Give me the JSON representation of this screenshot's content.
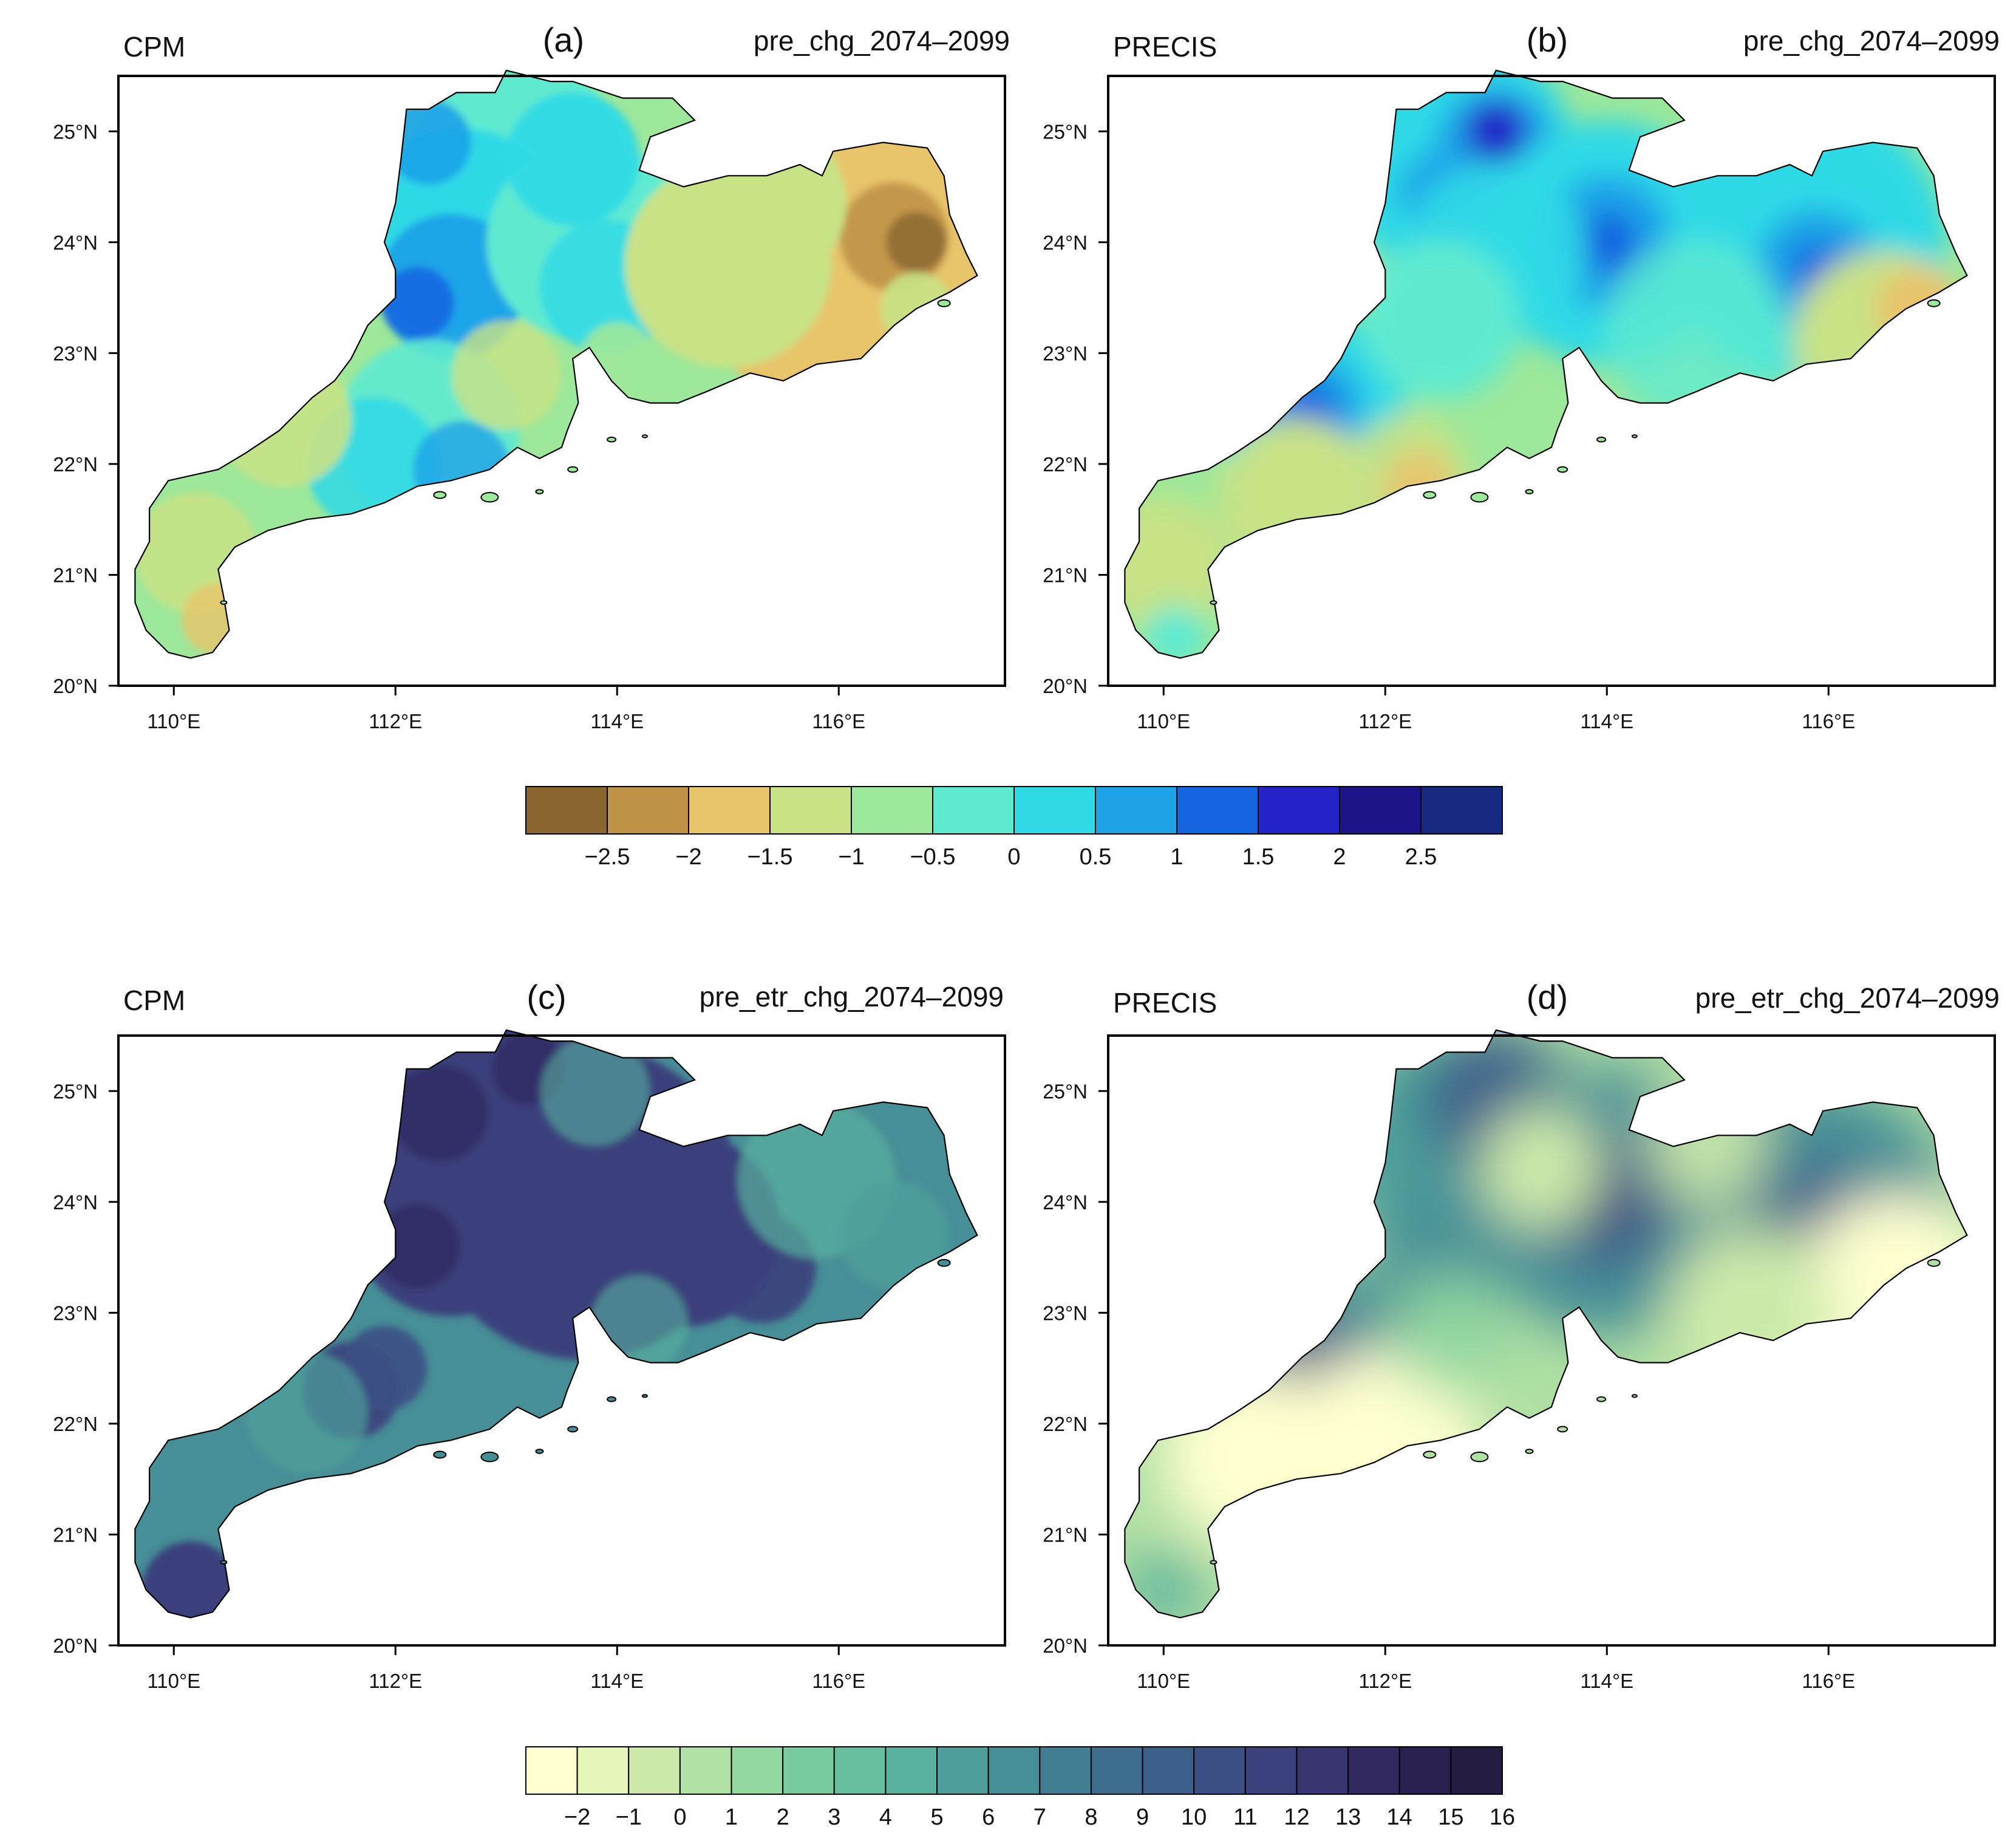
{
  "panels": [
    {
      "id": "a",
      "letter": "(a)",
      "model": "CPM",
      "variable": "pre_chg_2074–2099",
      "scale": "pre_chg"
    },
    {
      "id": "b",
      "letter": "(b)",
      "model": "PRECIS",
      "variable": "pre_chg_2074–2099",
      "scale": "pre_chg"
    },
    {
      "id": "c",
      "letter": "(c)",
      "model": "CPM",
      "variable": "pre_etr_chg_2074–2099",
      "scale": "pre_etr_chg"
    },
    {
      "id": "d",
      "letter": "(d)",
      "model": "PRECIS",
      "variable": "pre_etr_chg_2074–2099",
      "scale": "pre_etr_chg"
    }
  ],
  "axes": {
    "lon_range": [
      109.5,
      117.5
    ],
    "lat_range": [
      20,
      25.5
    ],
    "lon_ticks": [
      "110°E",
      "112°E",
      "114°E",
      "116°E"
    ],
    "lat_ticks": [
      "20°N",
      "21°N",
      "22°N",
      "23°N",
      "24°N",
      "25°N"
    ]
  },
  "colorbar_top": {
    "labels": [
      "−2.5",
      "−2",
      "−1.5",
      "−1",
      "−0.5",
      "0",
      "0.5",
      "1",
      "1.5",
      "2",
      "2.5"
    ],
    "colors": [
      "#8a6530",
      "#c09448",
      "#e8c46a",
      "#c8e286",
      "#9de89a",
      "#5eead0",
      "#2fd9e6",
      "#1ea2e8",
      "#1564e0",
      "#2323c8",
      "#1c158a",
      "#152a80"
    ]
  },
  "colorbar_bottom": {
    "labels": [
      "−2",
      "−1",
      "0",
      "1",
      "2",
      "3",
      "4",
      "5",
      "6",
      "7",
      "8",
      "9",
      "10",
      "11",
      "12",
      "13",
      "14",
      "15",
      "16"
    ],
    "colors": [
      "#ffffcf",
      "#e6f5b8",
      "#cdeaaa",
      "#b0e0a3",
      "#92d7a0",
      "#79cc9f",
      "#67bf9f",
      "#58b09e",
      "#4e9f9b",
      "#478f97",
      "#417e93",
      "#3e6e8f",
      "#3c5f8a",
      "#3c4f85",
      "#3b417c",
      "#383470",
      "#322961",
      "#2c2051",
      "#251a40"
    ]
  }
}
